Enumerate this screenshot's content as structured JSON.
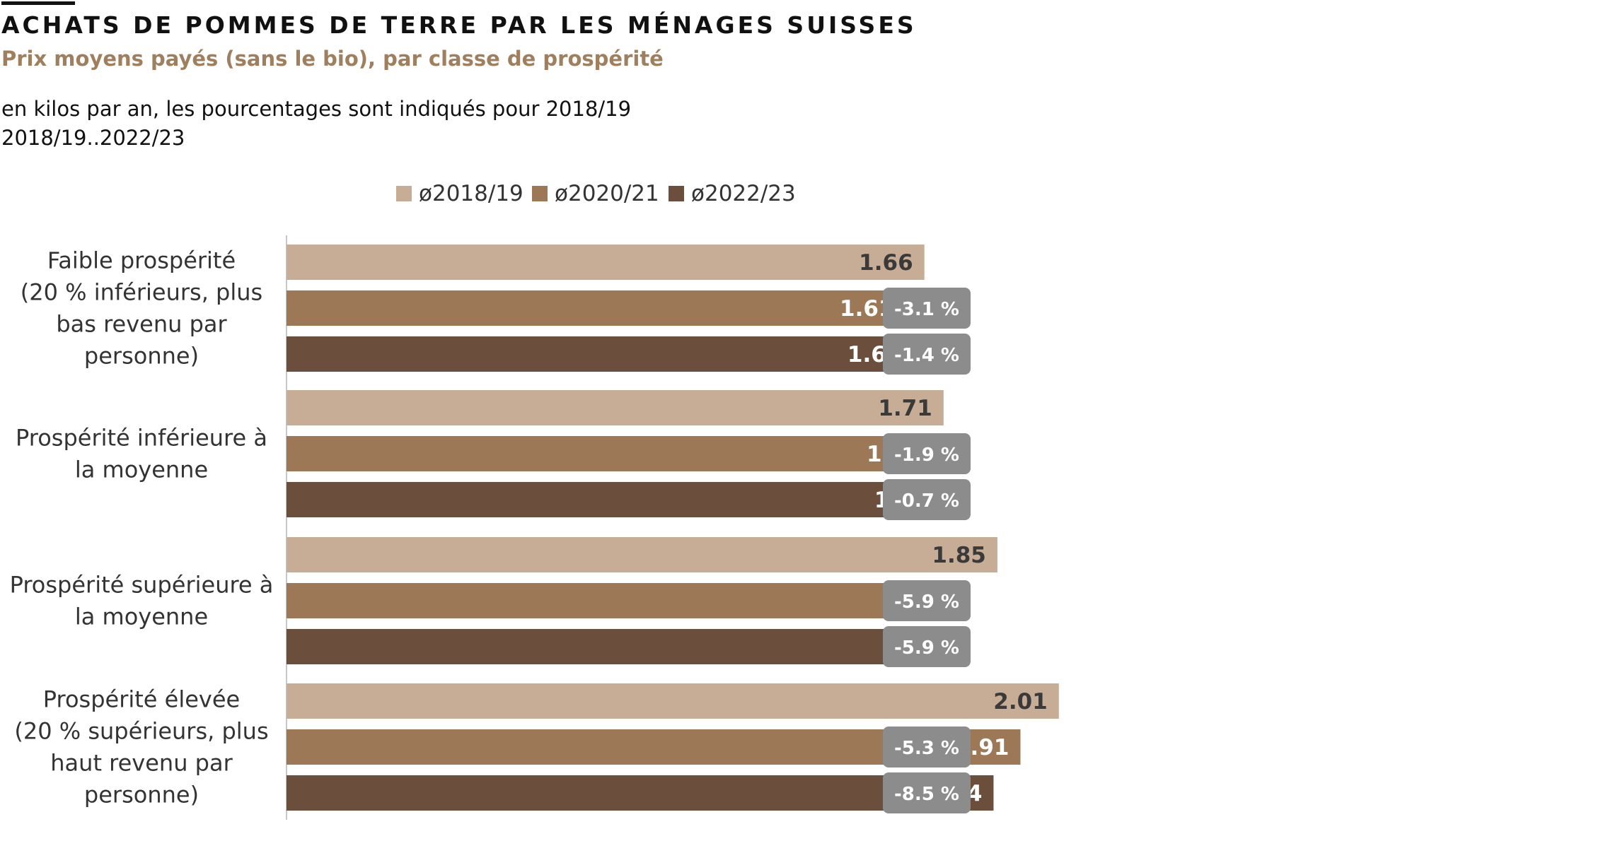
{
  "header": {
    "title": "ACHATS DE POMMES DE TERRE PAR LES MÉNAGES SUISSES",
    "subtitle": "Prix moyens payés (sans le bio), par classe de prospérité",
    "unit_note": "en kilos par an, les pourcentages sont indiqués pour 2018/19",
    "period": "2018/19..2022/23"
  },
  "colors": {
    "series_1": "#c7ad95",
    "series_2": "#9c7856",
    "series_3": "#6b4f3c",
    "badge": "#8c8c8c",
    "subtitle": "#a07f5e"
  },
  "chart_data": {
    "type": "bar",
    "orientation": "horizontal",
    "categories": [
      [
        "Faible prospérité",
        "(20 % inférieurs, plus",
        "bas revenu par",
        "personne)"
      ],
      [
        "Prospérité inférieure à",
        "la moyenne"
      ],
      [
        "Prospérité supérieure à",
        "la moyenne"
      ],
      [
        "Prospérité élevée",
        "(20 % supérieurs, plus",
        "haut revenu par",
        "personne)"
      ]
    ],
    "series": [
      {
        "name": "ø2018/19",
        "values": [
          1.66,
          1.71,
          1.85,
          2.01
        ]
      },
      {
        "name": "ø2020/21",
        "values": [
          1.61,
          1.68,
          1.74,
          1.91
        ]
      },
      {
        "name": "ø2022/23",
        "values": [
          1.63,
          1.7,
          1.74,
          1.84
        ]
      }
    ],
    "change_labels": [
      [
        null,
        "-3.1 %",
        "-1.4 %"
      ],
      [
        null,
        "-1.9 %",
        "-0.7 %"
      ],
      [
        null,
        "-5.9 %",
        "-5.9 %"
      ],
      [
        null,
        "-5.3 %",
        "-8.5 %"
      ]
    ],
    "xlim": [
      0,
      2.2
    ],
    "legend_position": "top",
    "grid": false
  }
}
